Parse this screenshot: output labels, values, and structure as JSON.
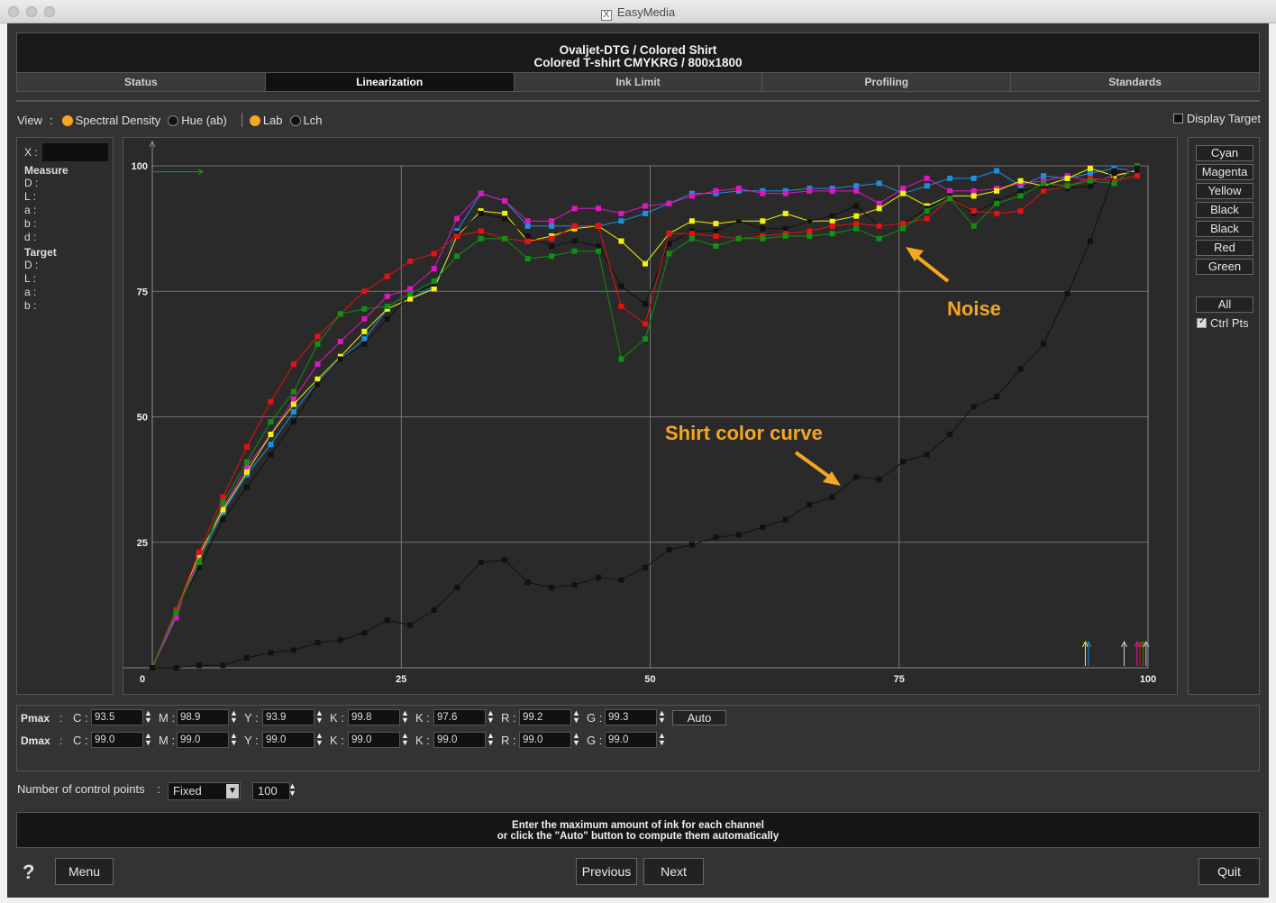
{
  "window": {
    "title": "EasyMedia"
  },
  "header": {
    "line1": "Ovaljet-DTG / Colored Shirt",
    "line2": "Colored T-shirt CMYKRG / 800x1800"
  },
  "tabs": [
    {
      "label": "Status",
      "active": false
    },
    {
      "label": "Linearization",
      "active": true
    },
    {
      "label": "Ink Limit",
      "active": false
    },
    {
      "label": "Profiling",
      "active": false
    },
    {
      "label": "Standards",
      "active": false
    }
  ],
  "view": {
    "label": "View",
    "options": [
      {
        "label": "Spectral Density",
        "selected": true
      },
      {
        "label": "Hue (ab)",
        "selected": false
      },
      {
        "label": "Lab",
        "selected": true
      },
      {
        "label": "Lch",
        "selected": false
      }
    ],
    "display_target": "Display Target"
  },
  "info": {
    "x_label": "X :",
    "measure_header": "Measure",
    "measure_rows": [
      "D :",
      "L :",
      "a :",
      "b :",
      "d :"
    ],
    "target_header": "Target",
    "target_rows": [
      "D :",
      "L :",
      "a :",
      "b :"
    ]
  },
  "channels": {
    "buttons": [
      "Cyan",
      "Magenta",
      "Yellow",
      "Black",
      "Black",
      "Red",
      "Green"
    ],
    "all": "All",
    "ctrl_pts": "Ctrl Pts",
    "ctrl_pts_checked": true
  },
  "pmax": {
    "label": "Pmax",
    "fields": [
      {
        "ch": "C :",
        "value": "93.5"
      },
      {
        "ch": "M :",
        "value": "98.9"
      },
      {
        "ch": "Y :",
        "value": "93.9"
      },
      {
        "ch": "K :",
        "value": "99.8"
      },
      {
        "ch": "K :",
        "value": "97.6"
      },
      {
        "ch": "R :",
        "value": "99.2"
      },
      {
        "ch": "G :",
        "value": "99.3"
      }
    ],
    "auto": "Auto"
  },
  "dmax": {
    "label": "Dmax",
    "fields": [
      {
        "ch": "C :",
        "value": "99.0"
      },
      {
        "ch": "M :",
        "value": "99.0"
      },
      {
        "ch": "Y :",
        "value": "99.0"
      },
      {
        "ch": "K :",
        "value": "99.0"
      },
      {
        "ch": "K :",
        "value": "99.0"
      },
      {
        "ch": "R :",
        "value": "99.0"
      },
      {
        "ch": "G :",
        "value": "99.0"
      }
    ]
  },
  "control_points": {
    "label": "Number of control points",
    "mode": "Fixed",
    "count": "100"
  },
  "hint": {
    "line1": "Enter the maximum amount of ink for each channel",
    "line2": "or click the \"Auto\" button to compute them automatically"
  },
  "footer": {
    "help": "?",
    "menu": "Menu",
    "previous": "Previous",
    "next": "Next",
    "quit": "Quit"
  },
  "annotations": {
    "noise": "Noise",
    "shirt": "Shirt color curve",
    "color": "#f5a623"
  },
  "chart_data": {
    "type": "line",
    "xlim": [
      0,
      100
    ],
    "ylim": [
      0,
      100
    ],
    "x_ticks": [
      0,
      25,
      50,
      75,
      100
    ],
    "y_ticks": [
      25,
      50,
      75,
      100
    ],
    "x_tick_labels": [
      "0",
      "25",
      "50",
      "75",
      "100"
    ],
    "y_tick_labels": [
      "25",
      "50",
      "75",
      "100"
    ],
    "grid": true,
    "series": [
      {
        "color": "#1e8fe0",
        "x": [
          0,
          2.4,
          4.7,
          7.1,
          9.5,
          11.9,
          14.2,
          16.6,
          18.9,
          21.3,
          23.6,
          25.9,
          28.3,
          30.6,
          33.0,
          35.4,
          37.7,
          40.1,
          42.4,
          44.8,
          47.1,
          49.5,
          51.9,
          54.2,
          56.6,
          58.9,
          61.3,
          63.6,
          66.0,
          68.3,
          70.7,
          73.0,
          75.4,
          77.8,
          80.1,
          82.5,
          84.8,
          87.2,
          89.5,
          91.9,
          94.2,
          96.6,
          98.9
        ],
        "y": [
          0,
          10.5,
          21.5,
          31,
          38.5,
          44.5,
          51,
          57,
          61.5,
          65.5,
          71.5,
          73.5,
          76,
          87,
          94.5,
          93,
          88,
          88,
          88,
          88,
          89,
          90.5,
          92.5,
          94.5,
          94.5,
          95,
          95,
          95,
          95.5,
          95.5,
          96,
          96.5,
          94.5,
          96,
          97.5,
          97.5,
          99,
          96,
          98,
          97.5,
          98.5,
          99.5,
          99
        ]
      },
      {
        "color": "#e016c0",
        "x": [
          0,
          2.4,
          4.7,
          7.1,
          9.5,
          11.9,
          14.2,
          16.6,
          18.9,
          21.3,
          23.6,
          25.9,
          28.3,
          30.6,
          33.0,
          35.4,
          37.7,
          40.1,
          42.4,
          44.8,
          47.1,
          49.5,
          51.9,
          54.2,
          56.6,
          58.9,
          61.3,
          63.6,
          66.0,
          68.3,
          70.7,
          73.0,
          75.4,
          77.8,
          80.1,
          82.5,
          84.8,
          87.2,
          89.5,
          91.9,
          94.2,
          96.6,
          98.9
        ],
        "y": [
          0,
          10,
          22,
          32,
          40,
          46.5,
          53.5,
          60.5,
          65,
          69.5,
          74,
          75.5,
          79.5,
          89.5,
          94.5,
          93,
          89,
          89,
          91.5,
          91.5,
          90.5,
          92,
          92.5,
          94,
          95,
          95.5,
          94.5,
          94.5,
          95,
          95,
          95,
          92.5,
          95.5,
          97.5,
          95,
          95,
          95.5,
          96.5,
          97,
          98,
          97,
          98,
          99.5
        ]
      },
      {
        "color": "#f2f20a",
        "x": [
          0,
          2.4,
          4.7,
          7.1,
          9.5,
          11.9,
          14.2,
          16.6,
          18.9,
          21.3,
          23.6,
          25.9,
          28.3,
          30.6,
          33.0,
          35.4,
          37.7,
          40.1,
          42.4,
          44.8,
          47.1,
          49.5,
          51.9,
          54.2,
          56.6,
          58.9,
          61.3,
          63.6,
          66.0,
          68.3,
          70.7,
          73.0,
          75.4,
          77.8,
          80.1,
          82.5,
          84.8,
          87.2,
          89.5,
          91.9,
          94.2,
          96.6,
          98.9
        ],
        "y": [
          0,
          11.5,
          22.5,
          31.5,
          39,
          46.5,
          52.5,
          57.5,
          62,
          67,
          71.5,
          73.5,
          75.5,
          86,
          91,
          90.5,
          85,
          86,
          87.5,
          88,
          85,
          80.5,
          86.5,
          89,
          88.5,
          89,
          89,
          90.5,
          89,
          89,
          90,
          91.5,
          94.5,
          92,
          94,
          94,
          95,
          97,
          96,
          97.5,
          99.5,
          98,
          99
        ]
      },
      {
        "color": "#111111",
        "x": [
          0,
          2.4,
          4.7,
          7.1,
          9.5,
          11.9,
          14.2,
          16.6,
          18.9,
          21.3,
          23.6,
          25.9,
          28.3,
          30.6,
          33.0,
          35.4,
          37.7,
          40.1,
          42.4,
          44.8,
          47.1,
          49.5,
          51.9,
          54.2,
          56.6,
          58.9,
          61.3,
          63.6,
          66.0,
          68.3,
          70.7,
          73.0,
          75.4,
          77.8,
          80.1,
          82.5,
          84.8,
          87.2,
          89.5,
          91.9,
          94.2,
          96.6,
          98.9
        ],
        "y": [
          0,
          11,
          20,
          29.5,
          36,
          42.5,
          49,
          56.5,
          61.5,
          64.5,
          69.5,
          74.5,
          76.5,
          86.5,
          90.5,
          89.5,
          86,
          84,
          85,
          84,
          76,
          72.5,
          84.5,
          87,
          87,
          89,
          87.5,
          87.5,
          89,
          90,
          92,
          88,
          88.5,
          91.5,
          94,
          90.5,
          93,
          95,
          96,
          95.5,
          96,
          99,
          98.5
        ]
      },
      {
        "color": "#e81010",
        "x": [
          0,
          2.4,
          4.7,
          7.1,
          9.5,
          11.9,
          14.2,
          16.6,
          18.9,
          21.3,
          23.6,
          25.9,
          28.3,
          30.6,
          33.0,
          35.4,
          37.7,
          40.1,
          42.4,
          44.8,
          47.1,
          49.5,
          51.9,
          54.2,
          56.6,
          58.9,
          61.3,
          63.6,
          66.0,
          68.3,
          70.7,
          73.0,
          75.4,
          77.8,
          80.1,
          82.5,
          84.8,
          87.2,
          89.5,
          91.9,
          94.2,
          96.6,
          98.9
        ],
        "y": [
          0,
          11.5,
          23,
          34,
          44,
          53,
          60.5,
          66,
          70.5,
          75,
          78,
          81,
          82.5,
          86,
          87,
          85.5,
          85,
          85.5,
          88,
          88,
          72,
          68.5,
          86.5,
          86.5,
          86,
          85.5,
          86,
          86.5,
          87,
          88,
          88.5,
          88,
          88.5,
          89.5,
          93.5,
          91,
          90.5,
          91,
          95,
          96,
          97.5,
          97,
          98
        ]
      },
      {
        "color": "#119011",
        "x": [
          0,
          2.4,
          4.7,
          7.1,
          9.5,
          11.9,
          14.2,
          16.6,
          18.9,
          21.3,
          23.6,
          25.9,
          28.3,
          30.6,
          33.0,
          35.4,
          37.7,
          40.1,
          42.4,
          44.8,
          47.1,
          49.5,
          51.9,
          54.2,
          56.6,
          58.9,
          61.3,
          63.6,
          66.0,
          68.3,
          70.7,
          73.0,
          75.4,
          77.8,
          80.1,
          82.5,
          84.8,
          87.2,
          89.5,
          91.9,
          94.2,
          96.6,
          98.9
        ],
        "y": [
          0,
          11,
          21,
          33,
          41,
          49,
          55,
          64.5,
          70.5,
          71.5,
          72,
          74.5,
          77,
          82,
          85.5,
          85.5,
          81.5,
          82,
          83,
          83,
          61.5,
          65.5,
          82.5,
          85.5,
          84,
          85.5,
          85.5,
          86,
          86,
          86.5,
          87.5,
          85.5,
          87.5,
          91,
          93.5,
          88,
          92.5,
          94,
          96.5,
          96,
          97,
          96.5,
          100
        ]
      },
      {
        "color": "#111111",
        "x": [
          0,
          2.4,
          4.7,
          7.1,
          9.5,
          11.9,
          14.2,
          16.6,
          18.9,
          21.3,
          23.6,
          25.9,
          28.3,
          30.6,
          33.0,
          35.4,
          37.7,
          40.1,
          42.4,
          44.8,
          47.1,
          49.5,
          51.9,
          54.2,
          56.6,
          58.9,
          61.3,
          63.6,
          66.0,
          68.3,
          70.7,
          73.0,
          75.4,
          77.8,
          80.1,
          82.5,
          84.8,
          87.2,
          89.5,
          91.9,
          94.2,
          96.6,
          98.9
        ],
        "y": [
          0,
          0,
          0.5,
          0.5,
          2,
          3,
          3.5,
          5,
          5.5,
          7,
          9.5,
          8.5,
          11.5,
          16,
          21,
          21.5,
          17,
          16,
          16.5,
          18,
          17.5,
          20,
          23.5,
          24.5,
          26,
          26.5,
          28,
          29.5,
          32.5,
          34,
          38,
          37.5,
          41,
          42.5,
          46.5,
          52,
          54,
          59.5,
          64.5,
          74.5,
          85,
          98.5,
          99.5
        ]
      }
    ]
  }
}
